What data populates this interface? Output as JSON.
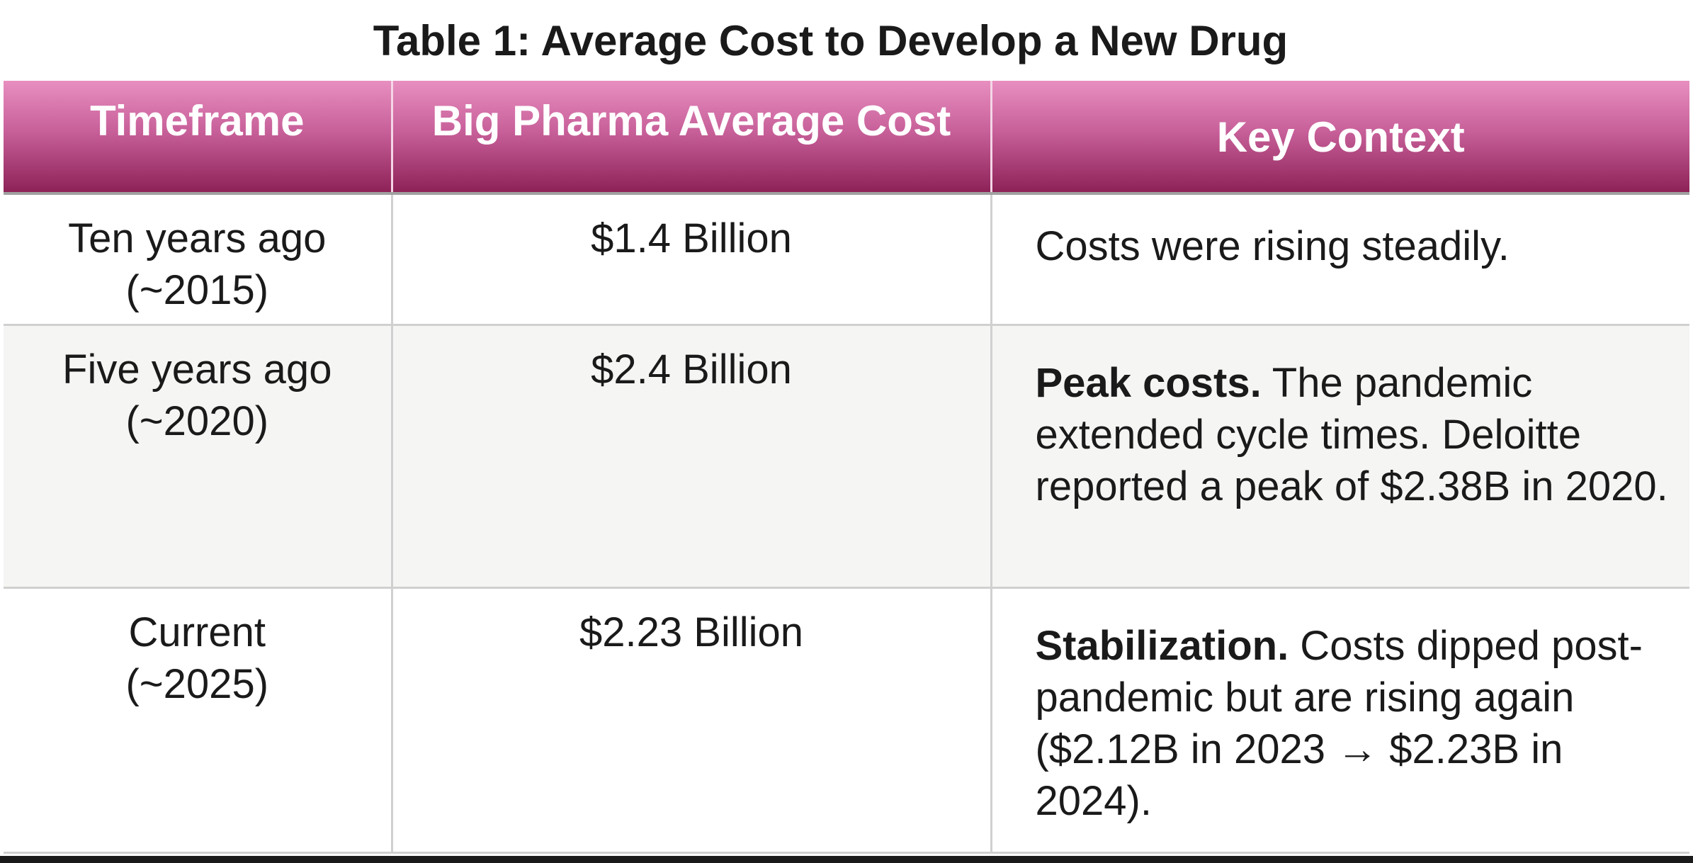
{
  "title": "Table 1: Average Cost to Develop a New Drug",
  "colors": {
    "header_gradient_top": "#e88fc0",
    "header_gradient_bottom": "#8d2257",
    "header_text": "#ffffff",
    "alt_row_background": "#f5f5f3"
  },
  "table": {
    "headers": [
      "Timeframe",
      "Big Pharma Average Cost",
      "Key Context"
    ],
    "rows": [
      {
        "timeframe_line1": "Ten years ago",
        "timeframe_line2": "(~2015)",
        "cost": "$1.4 Billion",
        "context_bold": "",
        "context_text": "Costs were rising steadily."
      },
      {
        "timeframe_line1": "Five years ago",
        "timeframe_line2": "(~2020)",
        "cost": "$2.4 Billion",
        "context_bold": "Peak costs.",
        "context_text": " The pandemic extended cycle times. Deloitte reported a peak of $2.38B in 2020."
      },
      {
        "timeframe_line1": "Current",
        "timeframe_line2": "(~2025)",
        "cost": "$2.23 Billion",
        "context_bold": "Stabilization.",
        "context_text": " Costs dipped post-pandemic but are rising again ($2.12B in 2023 → $2.23B in 2024)."
      }
    ]
  }
}
